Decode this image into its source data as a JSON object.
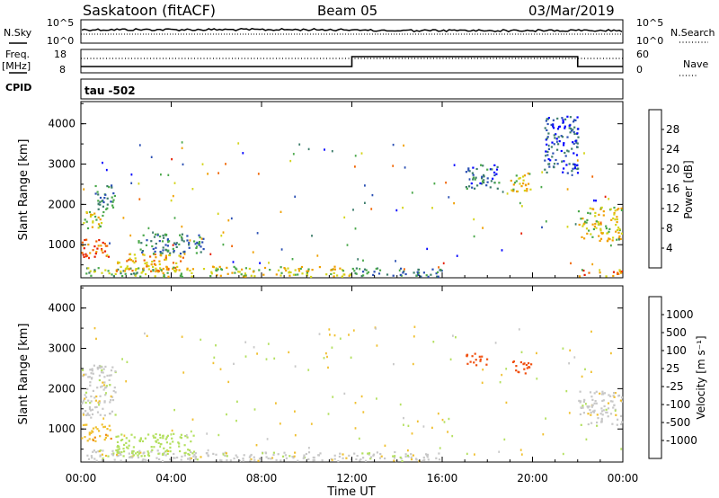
{
  "header": {
    "station": "Saskatoon (fitACF)",
    "beam": "Beam 05",
    "date": "03/Mar/2019"
  },
  "noise_panel": {
    "left_label": "N.Sky",
    "right_label": "N.Search",
    "left_ticks": [
      "10^5",
      "10^0"
    ],
    "right_ticks": [
      "10^5",
      "10^0"
    ]
  },
  "freq_panel": {
    "left_label_top": "Freq.",
    "left_label_unit": "[MHz]",
    "left_ticks": [
      "18",
      "8"
    ],
    "right_label": "Nave",
    "right_ticks": [
      "60",
      "0"
    ]
  },
  "cpid_panel": {
    "label": "CPID",
    "value": "tau -502"
  },
  "colors": {
    "power_scale": [
      "#0000ff",
      "#2a4fb3",
      "#3d7d6b",
      "#4aa84a",
      "#d4d41a",
      "#f0a000",
      "#f06400",
      "#e61e00"
    ],
    "velocity_scale": [
      "#e00000",
      "#f05010",
      "#f08a10",
      "#f0c030",
      "#c8c8c8",
      "#b4e060",
      "#58c030",
      "#3a8a50",
      "#2040b0"
    ],
    "frame": "#000000"
  },
  "chart_data": [
    {
      "type": "heatmap",
      "title": "Power",
      "ylabel": "Slant Range [km]",
      "xlabel": "",
      "x_ticks": [
        "00:00",
        "04:00",
        "08:00",
        "12:00",
        "16:00",
        "20:00",
        "00:00"
      ],
      "y_ticks": [
        "1000",
        "2000",
        "3000",
        "4000"
      ],
      "ylim": [
        180,
        4550
      ],
      "xlim_hours": [
        0,
        24
      ],
      "colorbar": {
        "label": "Power [dB]",
        "ticks": [
          "4",
          "8",
          "12",
          "16",
          "20",
          "24",
          "28"
        ],
        "range": [
          0,
          32
        ]
      },
      "regions": [
        {
          "t0": 0.0,
          "t1": 1.3,
          "r0": 700,
          "r1": 1150,
          "value": 28
        },
        {
          "t0": 0.0,
          "t1": 1.0,
          "r0": 1400,
          "r1": 1850,
          "value": 18
        },
        {
          "t0": 0.6,
          "t1": 1.5,
          "r0": 1900,
          "r1": 2550,
          "value": 10
        },
        {
          "t0": 0.2,
          "t1": 3.5,
          "r0": 180,
          "r1": 450,
          "value": 14
        },
        {
          "t0": 1.5,
          "t1": 4.5,
          "r0": 350,
          "r1": 800,
          "value": 22
        },
        {
          "t0": 2.5,
          "t1": 5.5,
          "r0": 800,
          "r1": 1300,
          "value": 10
        },
        {
          "t0": 3.5,
          "t1": 12.0,
          "r0": 180,
          "r1": 480,
          "value": 18
        },
        {
          "t0": 12.0,
          "t1": 16.0,
          "r0": 180,
          "r1": 450,
          "value": 10
        },
        {
          "t0": 17.0,
          "t1": 18.5,
          "r0": 2400,
          "r1": 3000,
          "value": 8
        },
        {
          "t0": 19.0,
          "t1": 20.0,
          "r0": 2300,
          "r1": 2800,
          "value": 18
        },
        {
          "t0": 20.5,
          "t1": 22.0,
          "r0": 2800,
          "r1": 4200,
          "value": 6
        },
        {
          "t0": 22.0,
          "t1": 24.0,
          "r0": 1100,
          "r1": 1950,
          "value": 18
        },
        {
          "t0": 22.0,
          "t1": 24.0,
          "r0": 180,
          "r1": 400,
          "value": 24
        }
      ]
    },
    {
      "type": "heatmap",
      "title": "Velocity",
      "ylabel": "Slant Range [km]",
      "xlabel": "Time UT",
      "x_ticks": [
        "00:00",
        "04:00",
        "08:00",
        "12:00",
        "16:00",
        "20:00",
        "00:00"
      ],
      "y_ticks": [
        "1000",
        "2000",
        "3000",
        "4000"
      ],
      "ylim": [
        180,
        4550
      ],
      "xlim_hours": [
        0,
        24
      ],
      "colorbar": {
        "label": "Velocity [m s⁻¹]",
        "ticks": [
          "1000",
          "500",
          "100",
          "25",
          "-25",
          "-100",
          "-500",
          "-1000"
        ]
      },
      "regions": [
        {
          "t0": 0.0,
          "t1": 1.3,
          "r0": 700,
          "r1": 1150,
          "value": -80
        },
        {
          "t0": 0.0,
          "t1": 1.5,
          "r0": 1300,
          "r1": 2600,
          "value": 0
        },
        {
          "t0": 0.2,
          "t1": 4.0,
          "r0": 180,
          "r1": 500,
          "value": 0
        },
        {
          "t0": 1.5,
          "t1": 5.0,
          "r0": 350,
          "r1": 900,
          "value": 60
        },
        {
          "t0": 4.0,
          "t1": 16.0,
          "r0": 180,
          "r1": 450,
          "value": 0
        },
        {
          "t0": 17.0,
          "t1": 18.0,
          "r0": 2600,
          "r1": 2900,
          "value": -600
        },
        {
          "t0": 19.0,
          "t1": 20.0,
          "r0": 2400,
          "r1": 2700,
          "value": -600
        },
        {
          "t0": 22.0,
          "t1": 24.0,
          "r0": 1100,
          "r1": 1950,
          "value": 0
        }
      ]
    }
  ]
}
